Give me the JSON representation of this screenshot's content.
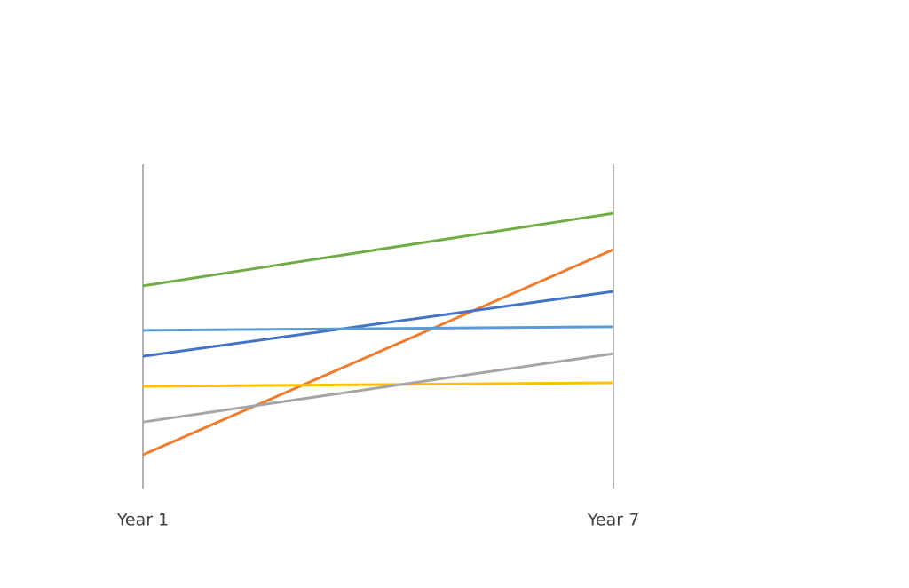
{
  "chart_data": {
    "type": "line",
    "categories": [
      "Year 1",
      "Year 7"
    ],
    "ylim": [
      0,
      100
    ],
    "series": [
      {
        "color": "#70ad47",
        "values": [
          62.5,
          84.9
        ]
      },
      {
        "color": "#ed7d31",
        "values": [
          10.4,
          73.7
        ]
      },
      {
        "color": "#4472c4",
        "values": [
          40.8,
          60.8
        ]
      },
      {
        "color": "#5b9bd5",
        "values": [
          48.8,
          49.9
        ]
      },
      {
        "color": "#ffc000",
        "values": [
          31.5,
          32.6
        ]
      },
      {
        "color": "#a5a5a5",
        "values": [
          20.5,
          41.6
        ]
      }
    ]
  }
}
